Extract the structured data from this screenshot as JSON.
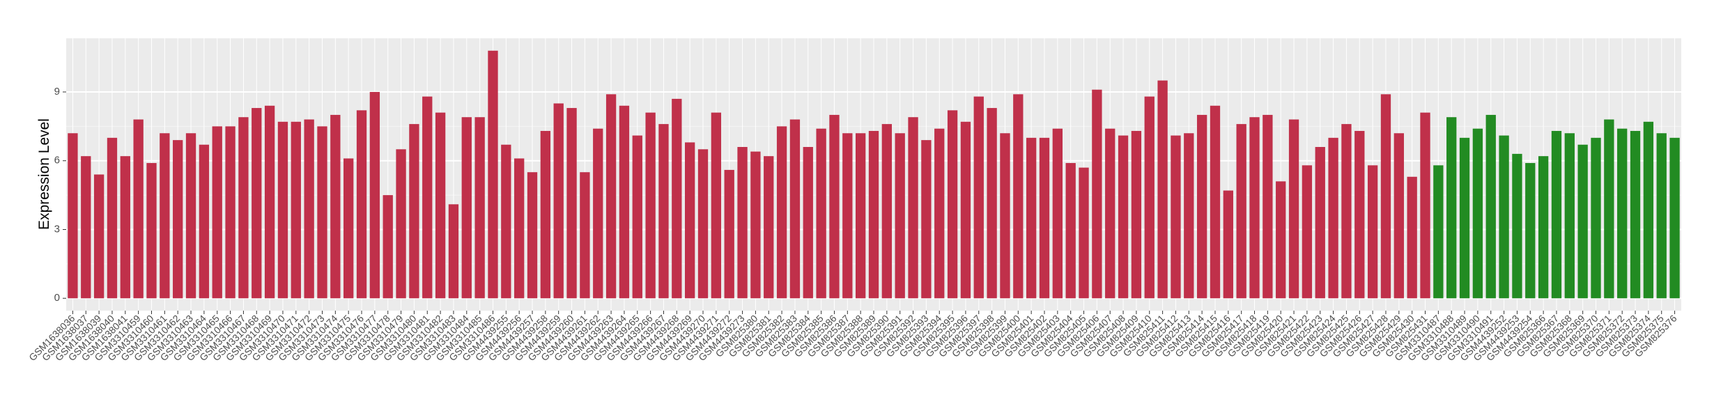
{
  "chart_data": {
    "type": "bar",
    "y_label": "Expression Level",
    "categories": [
      "GSM1638036",
      "GSM1638037",
      "GSM1638039",
      "GSM1638040",
      "GSM1638041",
      "GSM3310459",
      "GSM3310460",
      "GSM3310461",
      "GSM3310462",
      "GSM3310463",
      "GSM3310464",
      "GSM3310465",
      "GSM3310466",
      "GSM3310467",
      "GSM3310468",
      "GSM3310469",
      "GSM3310470",
      "GSM3310471",
      "GSM3310472",
      "GSM3310473",
      "GSM3310474",
      "GSM3310475",
      "GSM3310476",
      "GSM3310477",
      "GSM3310478",
      "GSM3310479",
      "GSM3310480",
      "GSM3310481",
      "GSM3310482",
      "GSM3310483",
      "GSM3310484",
      "GSM3310485",
      "GSM3310486",
      "GSM4439255",
      "GSM4439256",
      "GSM4439257",
      "GSM4439258",
      "GSM4439259",
      "GSM4439260",
      "GSM4439261",
      "GSM4439262",
      "GSM4439263",
      "GSM4439264",
      "GSM4439265",
      "GSM4439266",
      "GSM4439267",
      "GSM4439268",
      "GSM4439269",
      "GSM4439270",
      "GSM4439271",
      "GSM4439272",
      "GSM4439273",
      "GSM825380",
      "GSM825381",
      "GSM825382",
      "GSM825383",
      "GSM825384",
      "GSM825385",
      "GSM825386",
      "GSM825387",
      "GSM825388",
      "GSM825389",
      "GSM825390",
      "GSM825391",
      "GSM825392",
      "GSM825393",
      "GSM825394",
      "GSM825395",
      "GSM825396",
      "GSM825397",
      "GSM825398",
      "GSM825399",
      "GSM825400",
      "GSM825401",
      "GSM825402",
      "GSM825403",
      "GSM825404",
      "GSM825405",
      "GSM825406",
      "GSM825407",
      "GSM825408",
      "GSM825409",
      "GSM825410",
      "GSM825411",
      "GSM825412",
      "GSM825413",
      "GSM825414",
      "GSM825415",
      "GSM825416",
      "GSM825417",
      "GSM825418",
      "GSM825419",
      "GSM825420",
      "GSM825421",
      "GSM825422",
      "GSM825423",
      "GSM825424",
      "GSM825425",
      "GSM825426",
      "GSM825427",
      "GSM825428",
      "GSM825429",
      "GSM825430",
      "GSM825431",
      "GSM3310487",
      "GSM3310488",
      "GSM3310489",
      "GSM3310490",
      "GSM3310491",
      "GSM4439252",
      "GSM4439253",
      "GSM4439254",
      "GSM825366",
      "GSM825367",
      "GSM825368",
      "GSM825369",
      "GSM825370",
      "GSM825371",
      "GSM825372",
      "GSM825373",
      "GSM825374",
      "GSM825375",
      "GSM825376"
    ],
    "values": [
      7.2,
      6.2,
      5.4,
      7.0,
      6.2,
      7.8,
      5.9,
      7.2,
      6.9,
      7.2,
      6.7,
      7.5,
      7.5,
      7.9,
      8.3,
      8.4,
      7.7,
      7.7,
      7.8,
      7.5,
      8.0,
      6.1,
      8.2,
      9.0,
      4.5,
      6.5,
      7.6,
      8.8,
      8.1,
      4.1,
      7.9,
      7.9,
      10.8,
      6.7,
      6.1,
      5.5,
      7.3,
      8.5,
      8.3,
      5.5,
      7.4,
      8.9,
      8.4,
      7.1,
      8.1,
      7.6,
      8.7,
      6.8,
      6.5,
      8.1,
      5.6,
      6.6,
      6.4,
      6.2,
      7.5,
      7.8,
      6.6,
      7.4,
      8.0,
      7.2,
      7.2,
      7.3,
      7.6,
      7.2,
      7.9,
      6.9,
      7.4,
      8.2,
      7.7,
      8.8,
      8.3,
      7.2,
      8.9,
      7.0,
      7.0,
      7.4,
      5.9,
      5.7,
      9.1,
      7.4,
      7.1,
      7.3,
      8.8,
      9.5,
      7.1,
      7.2,
      8.0,
      8.4,
      4.7,
      7.6,
      7.9,
      8.0,
      5.1,
      7.8,
      5.8,
      6.6,
      7.0,
      7.6,
      7.3,
      5.8,
      8.9,
      7.2,
      5.3,
      8.1,
      5.8,
      7.9,
      7.0,
      7.4,
      8.0,
      7.1,
      6.3,
      5.9,
      6.2,
      7.3,
      7.2,
      6.7,
      7.0,
      7.8,
      7.4,
      7.3,
      7.7,
      7.2,
      7.0
    ],
    "colors": [
      "#c0304a",
      "#c0304a",
      "#c0304a",
      "#c0304a",
      "#c0304a",
      "#c0304a",
      "#c0304a",
      "#c0304a",
      "#c0304a",
      "#c0304a",
      "#c0304a",
      "#c0304a",
      "#c0304a",
      "#c0304a",
      "#c0304a",
      "#c0304a",
      "#c0304a",
      "#c0304a",
      "#c0304a",
      "#c0304a",
      "#c0304a",
      "#c0304a",
      "#c0304a",
      "#c0304a",
      "#c0304a",
      "#c0304a",
      "#c0304a",
      "#c0304a",
      "#c0304a",
      "#c0304a",
      "#c0304a",
      "#c0304a",
      "#c0304a",
      "#c0304a",
      "#c0304a",
      "#c0304a",
      "#c0304a",
      "#c0304a",
      "#c0304a",
      "#c0304a",
      "#c0304a",
      "#c0304a",
      "#c0304a",
      "#c0304a",
      "#c0304a",
      "#c0304a",
      "#c0304a",
      "#c0304a",
      "#c0304a",
      "#c0304a",
      "#c0304a",
      "#c0304a",
      "#c0304a",
      "#c0304a",
      "#c0304a",
      "#c0304a",
      "#c0304a",
      "#c0304a",
      "#c0304a",
      "#c0304a",
      "#c0304a",
      "#c0304a",
      "#c0304a",
      "#c0304a",
      "#c0304a",
      "#c0304a",
      "#c0304a",
      "#c0304a",
      "#c0304a",
      "#c0304a",
      "#c0304a",
      "#c0304a",
      "#c0304a",
      "#c0304a",
      "#c0304a",
      "#c0304a",
      "#c0304a",
      "#c0304a",
      "#c0304a",
      "#c0304a",
      "#c0304a",
      "#c0304a",
      "#c0304a",
      "#c0304a",
      "#c0304a",
      "#c0304a",
      "#c0304a",
      "#c0304a",
      "#c0304a",
      "#c0304a",
      "#c0304a",
      "#c0304a",
      "#c0304a",
      "#c0304a",
      "#c0304a",
      "#c0304a",
      "#c0304a",
      "#c0304a",
      "#c0304a",
      "#c0304a",
      "#c0304a",
      "#c0304a",
      "#c0304a",
      "#c0304a",
      "#228b22",
      "#228b22",
      "#228b22",
      "#228b22",
      "#228b22",
      "#228b22",
      "#228b22",
      "#228b22",
      "#228b22",
      "#228b22",
      "#228b22",
      "#228b22",
      "#228b22",
      "#228b22",
      "#228b22",
      "#228b22",
      "#228b22",
      "#228b22",
      "#228b22"
    ],
    "ylim": [
      -0.54,
      11.34
    ],
    "yticks": [
      0,
      3,
      6,
      9
    ],
    "grid": true
  }
}
